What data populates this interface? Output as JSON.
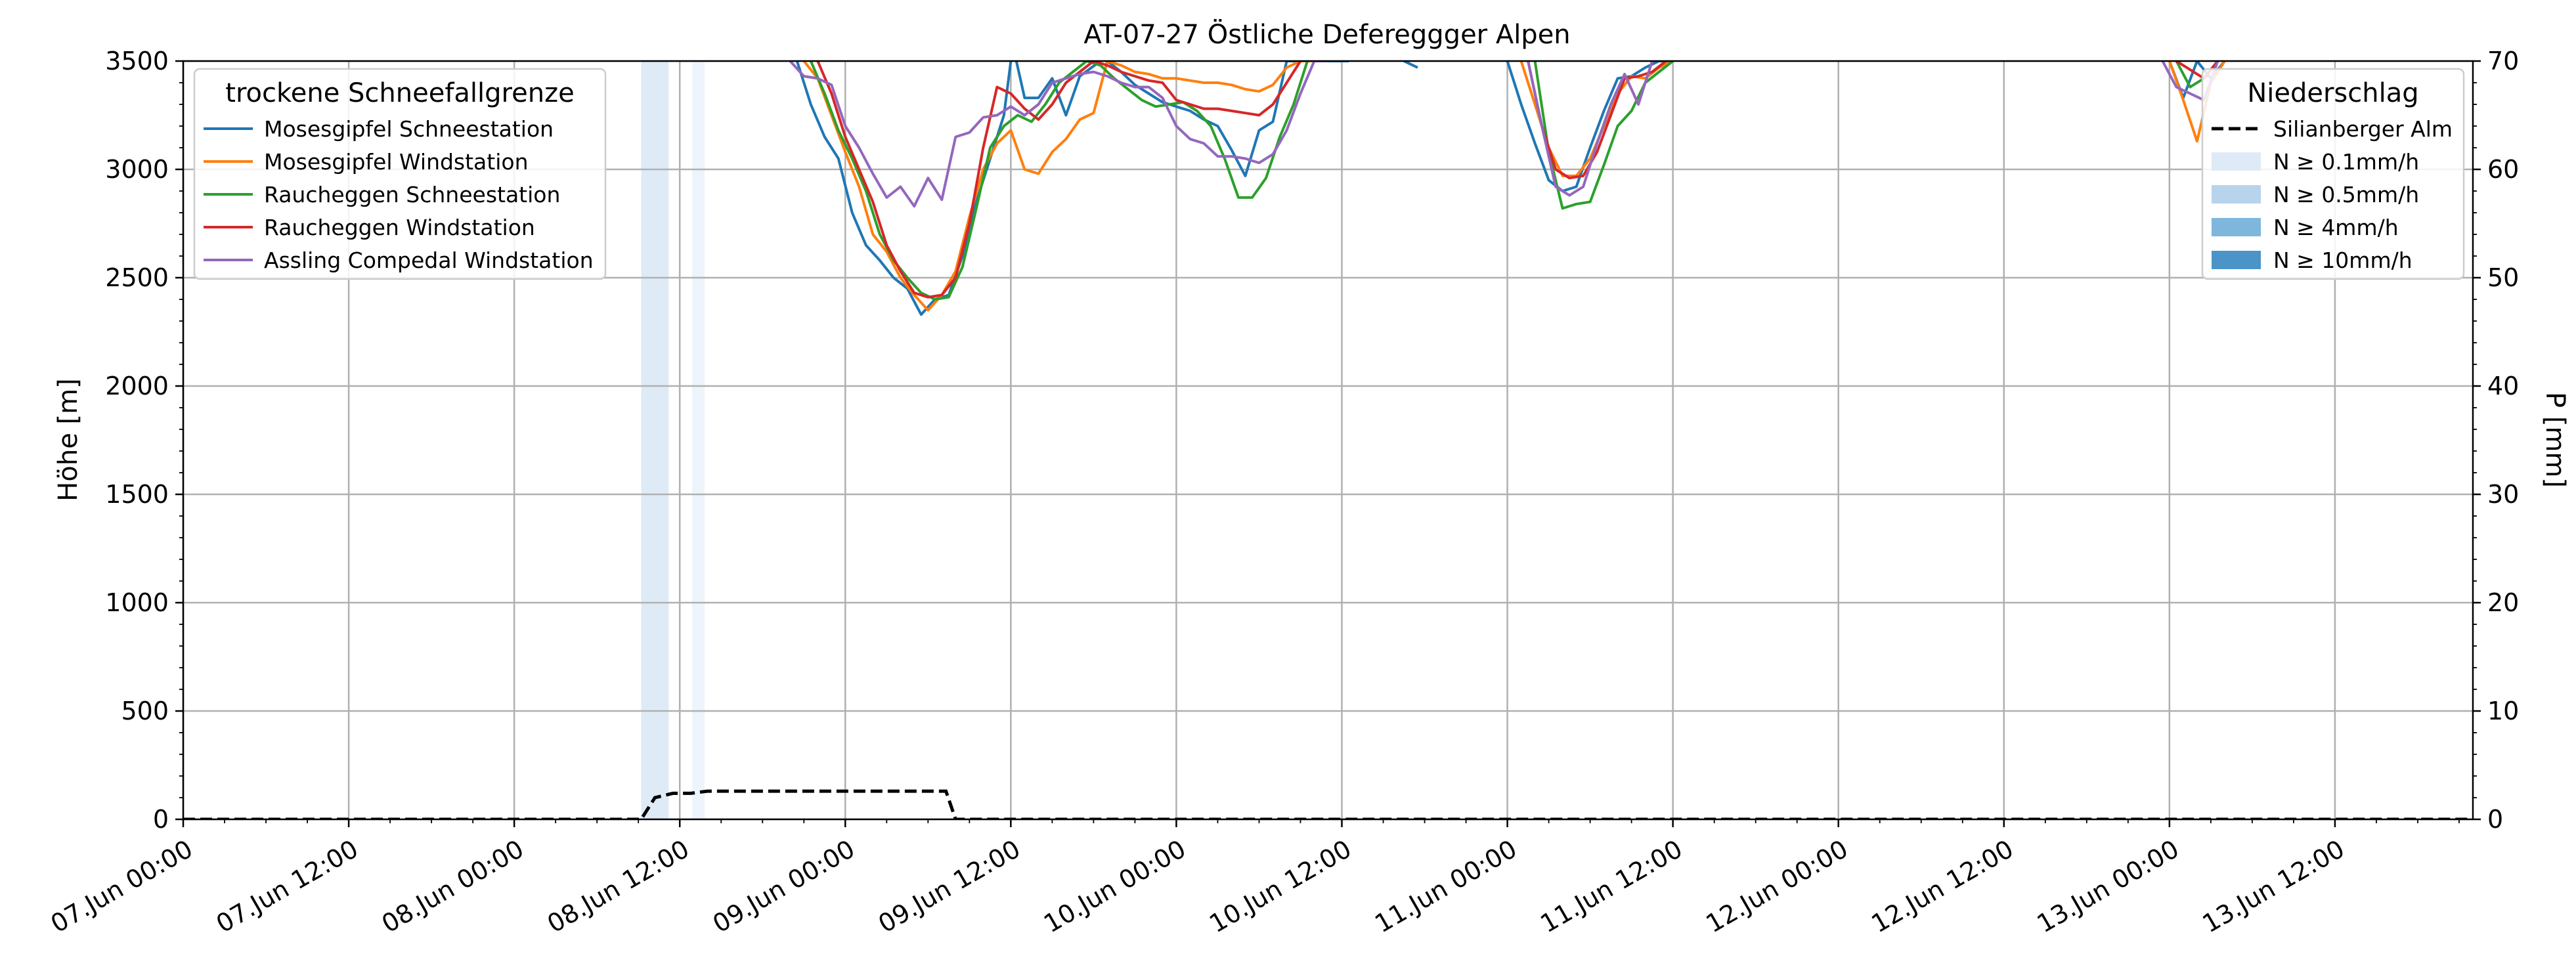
{
  "chart_data": {
    "type": "line",
    "title": "AT-07-27 Östliche Defereggger Alpen",
    "ylabel_left": "Höhe [m]",
    "ylabel_right": "P [mm]",
    "xlabel": "",
    "x_range": [
      "2024-06-07 00:00",
      "2024-06-13 22:00"
    ],
    "ylim_left": [
      0,
      3500
    ],
    "ylim_right": [
      0,
      70
    ],
    "grid": true,
    "x_ticks": [
      "07.Jun 00:00",
      "07.Jun 12:00",
      "08.Jun 00:00",
      "08.Jun 12:00",
      "09.Jun 00:00",
      "09.Jun 12:00",
      "10.Jun 00:00",
      "10.Jun 12:00",
      "11.Jun 00:00",
      "11.Jun 12:00",
      "12.Jun 00:00",
      "12.Jun 12:00",
      "13.Jun 00:00",
      "13.Jun 12:00"
    ],
    "y_ticks_left": [
      "0",
      "500",
      "1000",
      "1500",
      "2000",
      "2500",
      "3000",
      "3500"
    ],
    "y_ticks_right": [
      "0",
      "10",
      "20",
      "30",
      "40",
      "50",
      "60",
      "70"
    ],
    "legend_left": {
      "title": "trockene Schneefallgrenze",
      "placement": "top-left"
    },
    "legend_right": {
      "title": "Niederschlag",
      "placement": "top-right",
      "entries": [
        {
          "label": "Silianberger Alm",
          "kind": "dashed-line",
          "color": "#000000"
        },
        {
          "label": "N ≥ 0.1mm/h",
          "kind": "patch",
          "color": "#deebf7"
        },
        {
          "label": "N ≥ 0.5mm/h",
          "kind": "patch",
          "color": "#b8d4ec"
        },
        {
          "label": "N ≥ 4mm/h",
          "kind": "patch",
          "color": "#7fb6dc"
        },
        {
          "label": "N ≥ 10mm/h",
          "kind": "patch",
          "color": "#4a94c8"
        }
      ]
    },
    "precip_spans": [
      {
        "start_hour": 33.2,
        "end_hour": 35.2,
        "color": "#deebf7"
      },
      {
        "start_hour": 36.9,
        "end_hour": 37.8,
        "color": "#edf4fb"
      }
    ],
    "precip_series": {
      "name": "Silianberger Alm",
      "color": "#000000",
      "hours": [
        0,
        33.2,
        34.2,
        35.5,
        36.8,
        38.0,
        55.0,
        55.3,
        56.0,
        166
      ],
      "values": [
        0,
        0,
        2,
        2.4,
        2.4,
        2.6,
        2.6,
        2.6,
        0,
        0
      ]
    },
    "series": [
      {
        "name": "Mosesgipfel Schneestation",
        "color": "#1f77b4",
        "hours": [
          44.5,
          45.5,
          46.5,
          47.5,
          48.5,
          49.5,
          50.5,
          51.5,
          52.5,
          53.5,
          54.5,
          55.5,
          56.5,
          57.5,
          58.5,
          59.5,
          60,
          null,
          60.4,
          61,
          62,
          63,
          64,
          65,
          66.5,
          null,
          67,
          68,
          69,
          70,
          71,
          72,
          73,
          74,
          75,
          76,
          77,
          78,
          79,
          80,
          81,
          82,
          83,
          84.5,
          null,
          88.5,
          89.5,
          null,
          96,
          97,
          98,
          99,
          100,
          101,
          102,
          103,
          104,
          105,
          106,
          107,
          108,
          null,
          144,
          145,
          146,
          147,
          148
        ],
        "values": [
          3500,
          3300,
          3150,
          3050,
          2800,
          2650,
          2580,
          2500,
          2450,
          2330,
          2400,
          2420,
          2600,
          2850,
          3050,
          3250,
          3500,
          null,
          3500,
          3330,
          3330,
          3420,
          3250,
          3430,
          3500,
          null,
          3500,
          3450,
          3390,
          3350,
          3310,
          3290,
          3270,
          3230,
          3200,
          3090,
          2970,
          3180,
          3220,
          3500,
          3500,
          3500,
          3500,
          3500,
          null,
          3500,
          3470,
          null,
          3500,
          3300,
          3120,
          2950,
          2900,
          2920,
          3100,
          3270,
          3420,
          3430,
          3470,
          3500,
          3500,
          null,
          3500,
          3330,
          3500,
          3420,
          3500
        ]
      },
      {
        "name": "Mosesgipfel Windstation",
        "color": "#ff7f0e",
        "hours": [
          45,
          46,
          47,
          48,
          49,
          50,
          51,
          52,
          53,
          54,
          55,
          56,
          57,
          58,
          59,
          60,
          61,
          62,
          63,
          64,
          65,
          66,
          67,
          68,
          69,
          70,
          71,
          72,
          73,
          74,
          75,
          76,
          77,
          78,
          79,
          80,
          81,
          82,
          83,
          null,
          97,
          98,
          99,
          100,
          101,
          102,
          103,
          104,
          105,
          106,
          107,
          108,
          null,
          144,
          145,
          146,
          147,
          148
        ],
        "values": [
          3500,
          3420,
          3250,
          3080,
          2920,
          2700,
          2620,
          2500,
          2420,
          2350,
          2420,
          2530,
          2780,
          3000,
          3120,
          3180,
          3000,
          2980,
          3080,
          3140,
          3230,
          3260,
          3500,
          3480,
          3450,
          3440,
          3420,
          3420,
          3410,
          3400,
          3400,
          3390,
          3370,
          3360,
          3390,
          3470,
          3500,
          3500,
          3500,
          null,
          3500,
          3300,
          3100,
          2970,
          2970,
          3050,
          3200,
          3350,
          3430,
          3420,
          3470,
          3500,
          null,
          3500,
          3320,
          3130,
          3400,
          3500
        ]
      },
      {
        "name": "Raucheggen Schneestation",
        "color": "#2ca02c",
        "hours": [
          45.5,
          46.5,
          47.5,
          48.5,
          49.5,
          50.5,
          51.5,
          52.5,
          53.5,
          54.5,
          55.5,
          56.5,
          57.5,
          58.5,
          59.5,
          60.5,
          61.5,
          62.5,
          63.5,
          64.5,
          65.5,
          66.5,
          67.5,
          68.5,
          69.5,
          70.5,
          71.5,
          72.5,
          73.5,
          74.5,
          75.5,
          76.5,
          77.5,
          78.5,
          79.5,
          80.5,
          81.5,
          null,
          98,
          99,
          100,
          101,
          102,
          103,
          104,
          105,
          106,
          107,
          108,
          null,
          144.5,
          145.5,
          146.5,
          147.5
        ],
        "values": [
          3500,
          3350,
          3180,
          3050,
          2900,
          2700,
          2580,
          2500,
          2430,
          2400,
          2410,
          2550,
          2820,
          3100,
          3200,
          3250,
          3220,
          3300,
          3400,
          3450,
          3500,
          3480,
          3420,
          3370,
          3320,
          3290,
          3300,
          3310,
          3270,
          3200,
          3050,
          2870,
          2870,
          2960,
          3150,
          3300,
          3500,
          null,
          3500,
          3080,
          2820,
          2840,
          2850,
          3020,
          3200,
          3270,
          3400,
          3450,
          3500,
          null,
          3500,
          3380,
          3420,
          3500
        ]
      },
      {
        "name": "Raucheggen Windstation",
        "color": "#d62728",
        "hours": [
          46,
          47,
          48,
          49,
          50,
          51,
          52,
          53,
          54,
          55,
          56,
          57,
          58,
          59,
          60,
          61,
          62,
          63,
          64,
          65,
          66,
          67,
          68,
          69,
          70,
          71,
          72,
          73,
          74,
          75,
          76,
          77,
          78,
          79,
          80,
          81,
          null,
          97.5,
          98.5,
          99.5,
          100.5,
          101.5,
          102.5,
          103.5,
          104.5,
          105.5,
          106.5,
          107.5,
          null,
          144.5,
          145.5,
          146.5,
          147.5
        ],
        "values": [
          3500,
          3350,
          3150,
          3000,
          2850,
          2650,
          2530,
          2430,
          2410,
          2420,
          2500,
          2750,
          3100,
          3380,
          3350,
          3280,
          3230,
          3300,
          3400,
          3450,
          3500,
          3480,
          3450,
          3430,
          3410,
          3400,
          3320,
          3300,
          3280,
          3280,
          3270,
          3260,
          3250,
          3300,
          3400,
          3500,
          null,
          3500,
          3200,
          3000,
          2960,
          2970,
          3080,
          3250,
          3420,
          3430,
          3450,
          3500,
          null,
          3500,
          3460,
          3420,
          3500
        ]
      },
      {
        "name": "Assling Compedal Windstation",
        "color": "#9467bd",
        "hours": [
          44,
          45,
          46,
          47,
          48,
          49,
          50,
          51,
          52,
          53,
          54,
          55,
          56,
          57,
          58,
          59,
          60,
          61,
          62,
          63,
          64,
          65,
          66,
          67,
          68,
          69,
          70,
          71,
          72,
          73,
          74,
          75,
          76,
          77,
          78,
          79,
          80,
          81,
          82,
          83,
          null,
          97.5,
          98.5,
          99.5,
          100.5,
          101.5,
          102.5,
          103.5,
          104.5,
          105.5,
          106.5,
          null,
          143.5,
          144.5,
          145.5,
          146.5,
          147.5
        ],
        "values": [
          3500,
          3430,
          3420,
          3390,
          3200,
          3100,
          2980,
          2870,
          2920,
          2830,
          2960,
          2860,
          3150,
          3170,
          3240,
          3250,
          3290,
          3250,
          3300,
          3400,
          3420,
          3440,
          3450,
          3430,
          3400,
          3380,
          3380,
          3330,
          3200,
          3140,
          3120,
          3060,
          3060,
          3050,
          3030,
          3070,
          3180,
          3350,
          3500,
          3500,
          null,
          3500,
          3200,
          2920,
          2880,
          2920,
          3120,
          3300,
          3440,
          3300,
          3500,
          null,
          3500,
          3380,
          3350,
          3320,
          3500
        ]
      }
    ]
  }
}
